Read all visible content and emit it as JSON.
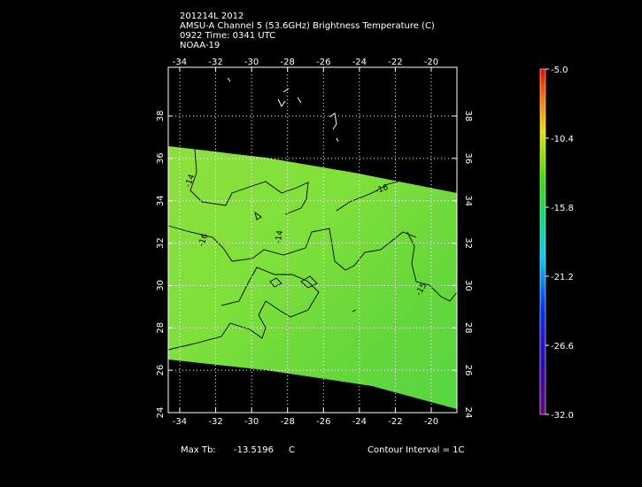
{
  "chart_data": {
    "type": "map",
    "title_lines": [
      "201214L 2012",
      "AMSU-A Channel 5 (53.6GHz) Brightness Temperature (C)",
      "0922 Time: 0341 UTC",
      "NOAA-19"
    ],
    "xlim": [
      -34.64,
      -18.57
    ],
    "ylim": [
      24,
      40.3
    ],
    "xticks": [
      -34,
      -32,
      -30,
      -28,
      -26,
      -24,
      -22,
      -20
    ],
    "yticks": [
      24,
      26,
      28,
      30,
      32,
      34,
      36,
      38
    ],
    "grid": true,
    "clim": [
      -32,
      -5
    ],
    "cticks": [
      {
        "value": -5,
        "label": "-5.0"
      },
      {
        "value": -10.4,
        "label": "-10.4"
      },
      {
        "value": -15.8,
        "label": "-15.8"
      },
      {
        "value": -21.2,
        "label": "-21.2"
      },
      {
        "value": -26.6,
        "label": "-26.6"
      },
      {
        "value": -32,
        "label": "-32.0"
      }
    ],
    "contour_labels": [
      "-14",
      "-16",
      "-14",
      "-16",
      "-15"
    ],
    "max_label": "Max Tb:",
    "max_value": "-13.5196",
    "max_unit": "C",
    "contour_interval": "Contour Interval = 1C"
  }
}
